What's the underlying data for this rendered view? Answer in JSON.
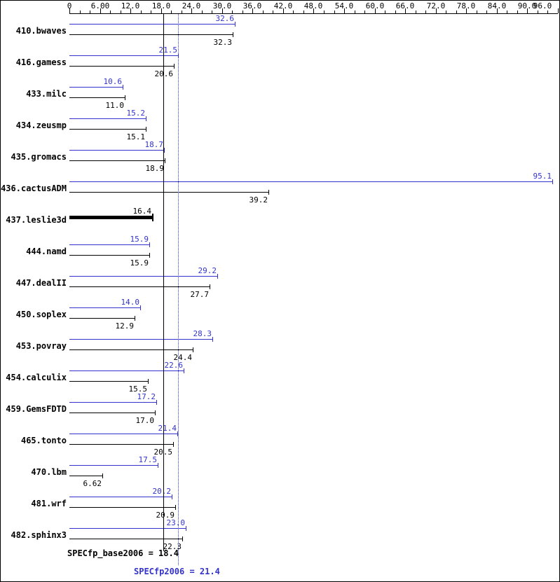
{
  "chart_data": {
    "type": "bar",
    "orientation": "horizontal",
    "title": "",
    "axis": {
      "min": 0,
      "max": 96,
      "minor_step": 2,
      "major_step": 6,
      "tick_labels": [
        "0",
        "6.00",
        "12.0",
        "18.0",
        "24.0",
        "30.0",
        "36.0",
        "42.0",
        "48.0",
        "54.0",
        "60.0",
        "66.0",
        "72.0",
        "78.0",
        "84.0",
        "90.0",
        "96.0"
      ]
    },
    "colors": {
      "peak": "#3333cc",
      "base": "#000000"
    },
    "benchmarks": [
      {
        "name": "410.bwaves",
        "peak": 32.6,
        "peak_label": "32.6",
        "base": 32.3,
        "base_label": "32.3"
      },
      {
        "name": "416.gamess",
        "peak": 21.5,
        "peak_label": "21.5",
        "base": 20.6,
        "base_label": "20.6"
      },
      {
        "name": "433.milc",
        "peak": 10.6,
        "peak_label": "10.6",
        "base": 11.0,
        "base_label": "11.0"
      },
      {
        "name": "434.zeusmp",
        "peak": 15.2,
        "peak_label": "15.2",
        "base": 15.1,
        "base_label": "15.1"
      },
      {
        "name": "435.gromacs",
        "peak": 18.7,
        "peak_label": "18.7",
        "base": 18.9,
        "base_label": "18.9"
      },
      {
        "name": "436.cactusADM",
        "peak": 95.1,
        "peak_label": "95.1",
        "base": 39.2,
        "base_label": "39.2"
      },
      {
        "name": "437.leslie3d",
        "peak": null,
        "peak_label": null,
        "base": 16.4,
        "base_label": "16.4",
        "bold": true
      },
      {
        "name": "444.namd",
        "peak": 15.9,
        "peak_label": "15.9",
        "base": 15.9,
        "base_label": "15.9"
      },
      {
        "name": "447.dealII",
        "peak": 29.2,
        "peak_label": "29.2",
        "base": 27.7,
        "base_label": "27.7"
      },
      {
        "name": "450.soplex",
        "peak": 14.0,
        "peak_label": "14.0",
        "base": 12.9,
        "base_label": "12.9"
      },
      {
        "name": "453.povray",
        "peak": 28.3,
        "peak_label": "28.3",
        "base": 24.4,
        "base_label": "24.4"
      },
      {
        "name": "454.calculix",
        "peak": 22.6,
        "peak_label": "22.6",
        "base": 15.5,
        "base_label": "15.5"
      },
      {
        "name": "459.GemsFDTD",
        "peak": 17.2,
        "peak_label": "17.2",
        "base": 17.0,
        "base_label": "17.0"
      },
      {
        "name": "465.tonto",
        "peak": 21.4,
        "peak_label": "21.4",
        "base": 20.5,
        "base_label": "20.5"
      },
      {
        "name": "470.lbm",
        "peak": 17.5,
        "peak_label": "17.5",
        "base": 6.62,
        "base_label": "6.62"
      },
      {
        "name": "481.wrf",
        "peak": 20.2,
        "peak_label": "20.2",
        "base": 20.9,
        "base_label": "20.9"
      },
      {
        "name": "482.sphinx3",
        "peak": 23.0,
        "peak_label": "23.0",
        "base": 22.3,
        "base_label": "22.3"
      }
    ],
    "means": {
      "base_value": 18.4,
      "base_label": "SPECfp_base2006 = 18.4",
      "peak_value": 21.4,
      "peak_label": "SPECfp2006 = 21.4"
    }
  }
}
